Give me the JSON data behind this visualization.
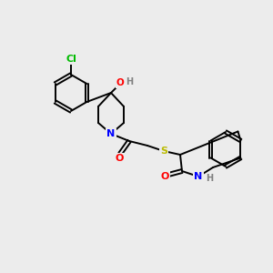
{
  "bg_color": "#ececec",
  "atom_colors": {
    "C": "#000000",
    "Cl": "#00bb00",
    "N": "#0000ff",
    "O": "#ff0000",
    "S": "#bbbb00",
    "H": "#808080"
  },
  "bond_color": "#000000",
  "figsize": [
    3.0,
    3.0
  ],
  "dpi": 100
}
